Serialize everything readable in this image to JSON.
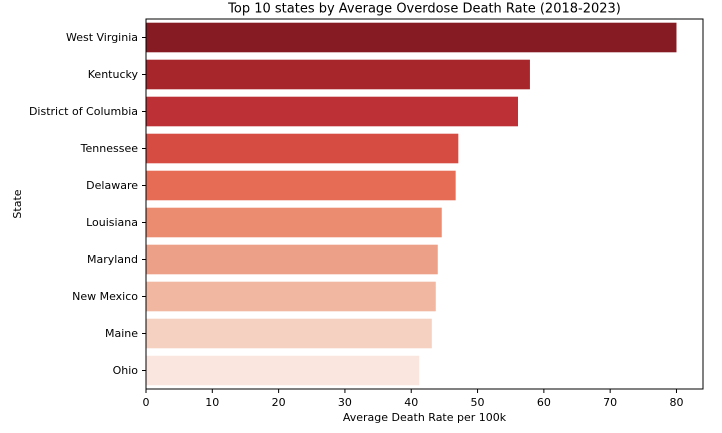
{
  "chart_data": {
    "type": "bar",
    "orientation": "horizontal",
    "title": "Top 10 states by Average Overdose Death Rate (2018-2023)",
    "xlabel": "Average Death Rate per 100k",
    "ylabel": "State",
    "xlim": [
      0,
      84
    ],
    "xticks": [
      0,
      10,
      20,
      30,
      40,
      50,
      60,
      70,
      80
    ],
    "grid": false,
    "legend": "none",
    "categories": [
      "West Virginia",
      "Kentucky",
      "District of Columbia",
      "Tennessee",
      "Delaware",
      "Louisiana",
      "Maryland",
      "New Mexico",
      "Maine",
      "Ohio"
    ],
    "values": [
      80.0,
      57.9,
      56.1,
      47.1,
      46.7,
      44.6,
      44.0,
      43.7,
      43.1,
      41.2
    ],
    "colors": [
      "#861b23",
      "#a7262c",
      "#bd3035",
      "#d64c42",
      "#e66c56",
      "#eb8b70",
      "#eda088",
      "#f1b7a1",
      "#f5d1c2",
      "#fbe6df"
    ]
  }
}
